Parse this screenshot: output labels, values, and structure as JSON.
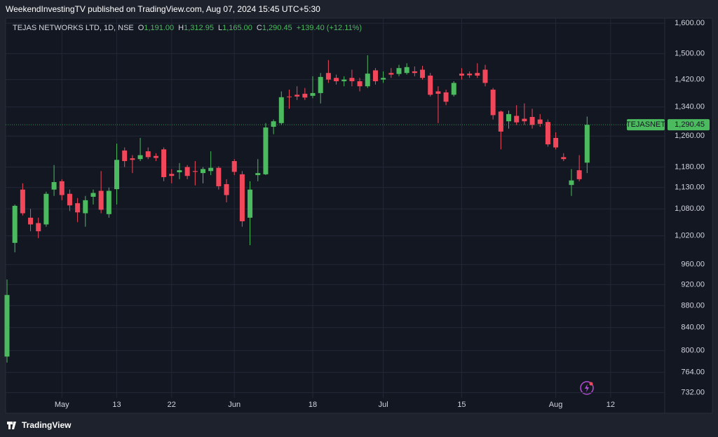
{
  "header": {
    "text": "WeekendInvestingTV published on TradingView.com, Aug 07, 2024 15:45 UTC+5:30"
  },
  "footer": {
    "brand": "TradingView"
  },
  "chart_data": {
    "type": "candlestick",
    "legend": {
      "symbol": "TEJAS NETWORKS LTD, 1D, NSE",
      "o_key": "O",
      "open": "1,191.00",
      "h_key": "H",
      "high": "1,312.95",
      "l_key": "L",
      "low": "1,165.00",
      "c_key": "C",
      "close": "1,290.45",
      "change": "+139.40 (+12.11%)"
    },
    "last_price": {
      "ticker": "TEJASNET",
      "label": "1,290.45"
    },
    "up_color": "#4cbb5f",
    "down_color": "#f2475a",
    "log_scale": true,
    "grid": true,
    "ylim": [
      724,
      1617
    ],
    "yticks": [
      {
        "value": 1600,
        "label": "1,600.00"
      },
      {
        "value": 1500,
        "label": "1,500.00"
      },
      {
        "value": 1420,
        "label": "1,420.00"
      },
      {
        "value": 1340,
        "label": "1,340.00"
      },
      {
        "value": 1260,
        "label": "1,260.00"
      },
      {
        "value": 1180,
        "label": "1,180.00"
      },
      {
        "value": 1130,
        "label": "1,130.00"
      },
      {
        "value": 1080,
        "label": "1,080.00"
      },
      {
        "value": 1020,
        "label": "1,020.00"
      },
      {
        "value": 960,
        "label": "960.00"
      },
      {
        "value": 920,
        "label": "920.00"
      },
      {
        "value": 880,
        "label": "880.00"
      },
      {
        "value": 840,
        "label": "840.00"
      },
      {
        "value": 800,
        "label": "800.00"
      },
      {
        "value": 764,
        "label": "764.00"
      },
      {
        "value": 732,
        "label": "732.00"
      }
    ],
    "categories": [
      null,
      null,
      null,
      null,
      null,
      null,
      null,
      "May",
      null,
      null,
      null,
      null,
      null,
      null,
      "13",
      null,
      null,
      null,
      null,
      null,
      null,
      "22",
      null,
      null,
      null,
      null,
      null,
      null,
      null,
      "Jun",
      null,
      null,
      null,
      null,
      null,
      null,
      null,
      null,
      null,
      "18",
      null,
      null,
      null,
      null,
      null,
      null,
      null,
      null,
      "Jul",
      null,
      null,
      null,
      null,
      null,
      null,
      null,
      null,
      null,
      "15",
      null,
      null,
      null,
      null,
      null,
      null,
      null,
      null,
      null,
      null,
      null,
      "Aug",
      null,
      null,
      null,
      null,
      null,
      null,
      "12"
    ],
    "open": [
      790,
      1005,
      1125,
      1060,
      1048,
      1045,
      1125,
      1145,
      1115,
      1093,
      1070,
      1108,
      1122,
      1068,
      1126,
      1222,
      1202,
      1200,
      1220,
      1208,
      1225,
      1163,
      1167,
      1180,
      1170,
      1165,
      1170,
      1178,
      1138,
      1195,
      1162,
      1060,
      1160,
      1162,
      1285,
      1295,
      1370,
      1375,
      1378,
      1372,
      1380,
      1440,
      1425,
      1415,
      1425,
      1415,
      1400,
      1448,
      1420,
      1440,
      1437,
      1440,
      1445,
      1450,
      1432,
      1385,
      1382,
      1375,
      1438,
      1438,
      1440,
      1450,
      1390,
      1327,
      1300,
      1315,
      1307,
      1312,
      1305,
      1298,
      1255,
      1205,
      1136,
      1172,
      1191,
      null,
      null,
      null
    ],
    "high": [
      930,
      1090,
      1140,
      1080,
      1060,
      1120,
      1185,
      1150,
      1125,
      1105,
      1110,
      1125,
      1170,
      1130,
      1240,
      1230,
      1210,
      1255,
      1230,
      1215,
      1230,
      1175,
      1190,
      1185,
      1195,
      1180,
      1220,
      1182,
      1150,
      1200,
      1170,
      1145,
      1200,
      1295,
      1305,
      1385,
      1390,
      1400,
      1395,
      1430,
      1440,
      1480,
      1435,
      1430,
      1450,
      1425,
      1495,
      1455,
      1445,
      1455,
      1465,
      1470,
      1460,
      1462,
      1440,
      1400,
      1390,
      1415,
      1455,
      1445,
      1470,
      1465,
      1395,
      1330,
      1330,
      1345,
      1350,
      1335,
      1320,
      1305,
      1270,
      1215,
      1175,
      1210,
      1312.95,
      null,
      null,
      null
    ],
    "low": [
      780,
      985,
      1065,
      1030,
      1015,
      1040,
      1110,
      1100,
      1075,
      1050,
      1040,
      1090,
      1070,
      1060,
      1090,
      1180,
      1165,
      1195,
      1200,
      1195,
      1145,
      1140,
      1150,
      1150,
      1135,
      1140,
      1160,
      1125,
      1095,
      1160,
      1040,
      1000,
      1145,
      1160,
      1265,
      1290,
      1335,
      1360,
      1360,
      1365,
      1350,
      1410,
      1405,
      1400,
      1400,
      1385,
      1395,
      1405,
      1410,
      1425,
      1430,
      1435,
      1430,
      1420,
      1370,
      1295,
      1345,
      1370,
      1420,
      1425,
      1425,
      1400,
      1305,
      1225,
      1280,
      1290,
      1290,
      1280,
      1285,
      1232,
      1225,
      1195,
      1110,
      1145,
      1165,
      null,
      null,
      null
    ],
    "close": [
      900,
      1087,
      1070,
      1045,
      1030,
      1115,
      1143,
      1112,
      1088,
      1072,
      1100,
      1117,
      1078,
      1122,
      1198,
      1195,
      1198,
      1210,
      1205,
      1203,
      1155,
      1158,
      1172,
      1158,
      1168,
      1175,
      1178,
      1133,
      1112,
      1168,
      1052,
      1125,
      1165,
      1283,
      1300,
      1368,
      1368,
      1370,
      1367,
      1380,
      1428,
      1420,
      1415,
      1420,
      1415,
      1400,
      1438,
      1415,
      1425,
      1435,
      1455,
      1458,
      1440,
      1425,
      1375,
      1378,
      1355,
      1410,
      1432,
      1433,
      1432,
      1410,
      1317,
      1272,
      1320,
      1297,
      1300,
      1290,
      1293,
      1238,
      1230,
      1200,
      1147,
      1150,
      1290.45,
      null,
      null,
      null
    ]
  }
}
